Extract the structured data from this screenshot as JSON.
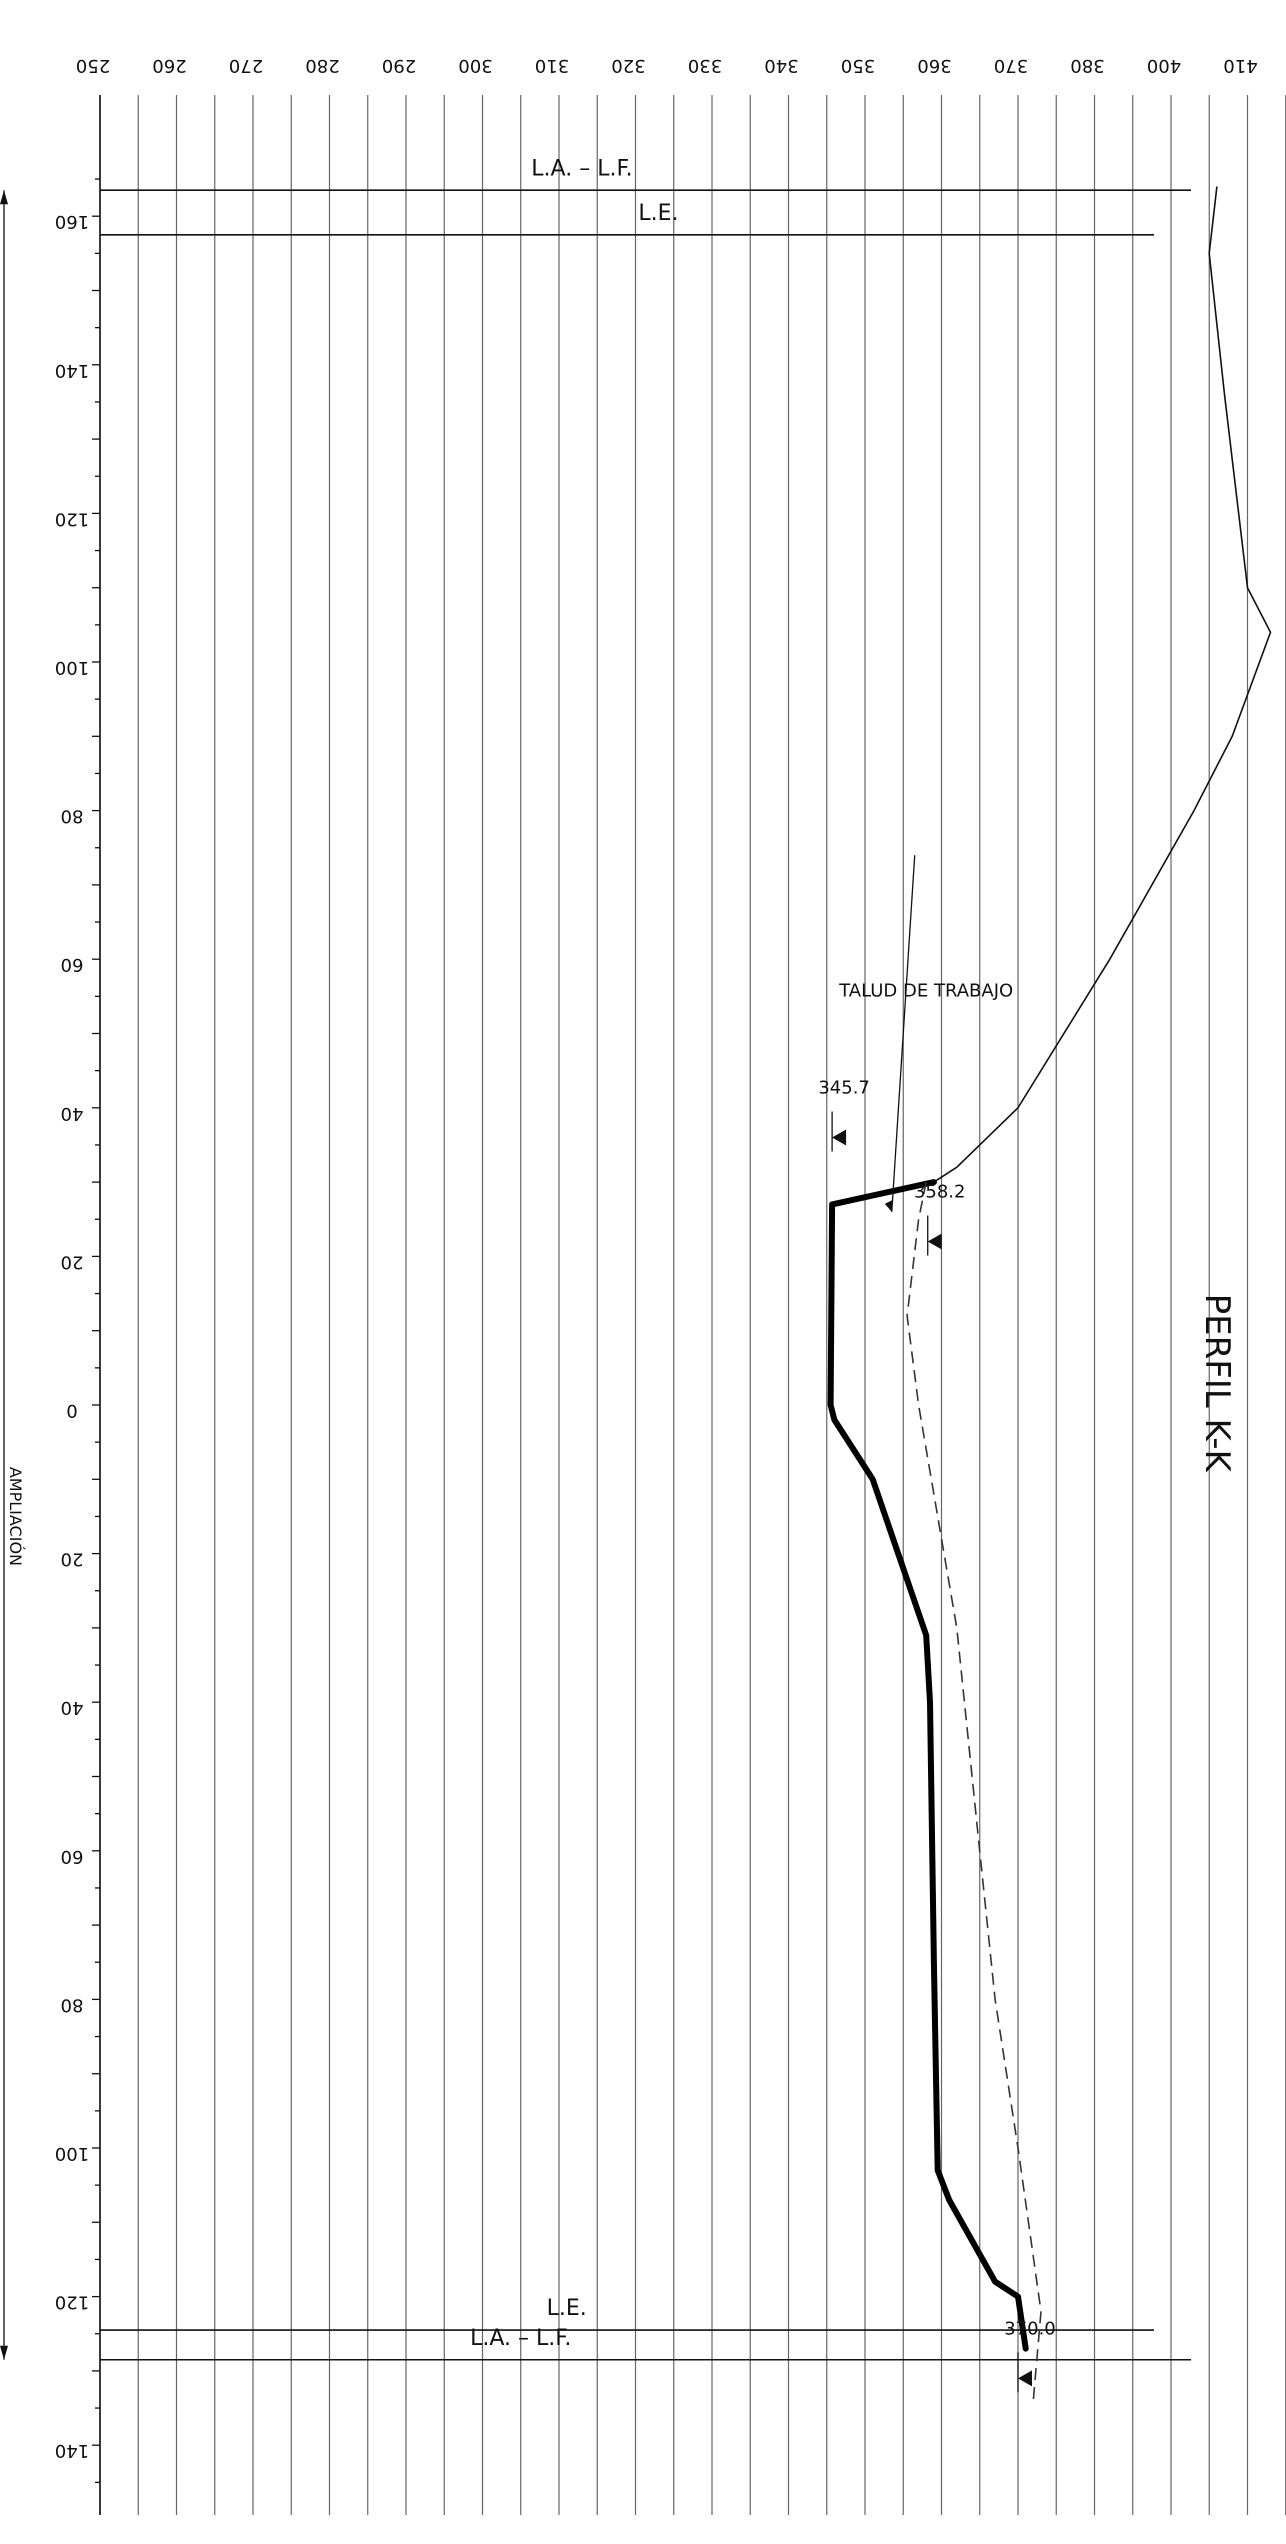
{
  "title": "PERFIL K-K",
  "elevation_ticks": [
    "250",
    "260",
    "270",
    "280",
    "290",
    "300",
    "310",
    "320",
    "330",
    "340",
    "350",
    "360",
    "370",
    "380",
    "400",
    "410"
  ],
  "station_ticks_upper": [
    "160",
    "140",
    "120",
    "100",
    "80",
    "60",
    "40",
    "20"
  ],
  "station_tick_zero": "0",
  "station_ticks_lower": [
    "20",
    "40",
    "60",
    "80",
    "100",
    "120",
    "140"
  ],
  "labels": {
    "la_lf_top": "L.A. – L.F.",
    "le_top": "L.E.",
    "le_bottom": "L.E.",
    "la_lf_bottom": "L.A. – L.F.",
    "talud": "TALUD DE TRABAJO",
    "level_1": "345.7",
    "level_2": "358.2",
    "level_3": "370.0",
    "ampliacion": "AMPLIACIÓN"
  },
  "chart_data": {
    "type": "line",
    "title": "PERFIL K-K",
    "x_axis": "station (printed as 160 … 0 … 140)",
    "y_axis": "elevation",
    "series": [
      {
        "style": "thin solid (terrain)",
        "points": [
          [
            -164,
            396
          ],
          [
            -155,
            395
          ],
          [
            -136,
            397
          ],
          [
            -110,
            400
          ],
          [
            -104,
            403
          ],
          [
            -90,
            398
          ],
          [
            -80,
            393
          ],
          [
            -60,
            382
          ],
          [
            -40,
            370
          ],
          [
            -32,
            362
          ],
          [
            -30,
            359
          ]
        ]
      },
      {
        "style": "thick solid (design)",
        "points": [
          [
            -30,
            359
          ],
          [
            -27,
            345.7
          ],
          [
            0,
            345.5
          ],
          [
            2,
            346
          ],
          [
            10,
            351
          ],
          [
            31,
            358
          ],
          [
            40,
            358.5
          ],
          [
            75,
            359
          ],
          [
            103,
            359.5
          ],
          [
            107,
            361
          ],
          [
            118,
            367
          ],
          [
            120,
            370
          ],
          [
            127,
            371
          ]
        ]
      },
      {
        "style": "dashed",
        "points": [
          [
            -30,
            358
          ],
          [
            -25,
            357
          ],
          [
            -12,
            355.5
          ],
          [
            0,
            357
          ],
          [
            30,
            362
          ],
          [
            60,
            365
          ],
          [
            80,
            367
          ],
          [
            100,
            370
          ],
          [
            122,
            373
          ],
          [
            134,
            372
          ]
        ]
      }
    ]
  }
}
